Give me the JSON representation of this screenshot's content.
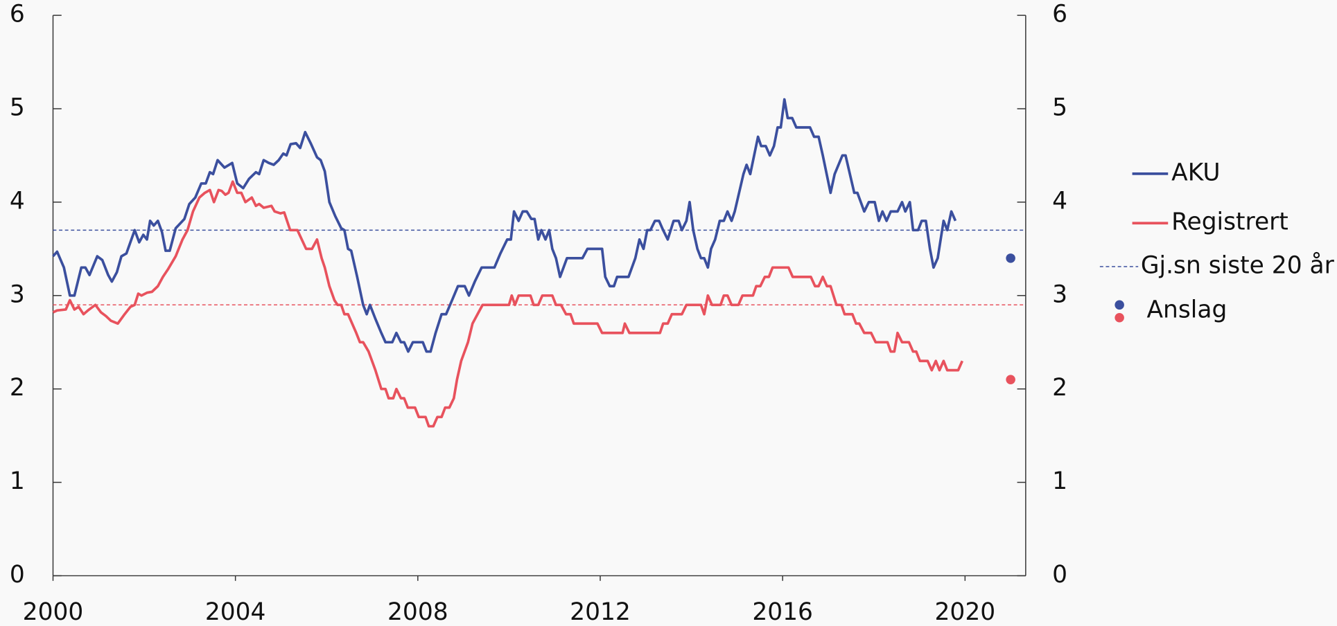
{
  "chart_data": {
    "type": "line",
    "xlim": [
      2000,
      2021.33
    ],
    "xticks": [
      2000,
      2004,
      2008,
      2012,
      2016,
      2020
    ],
    "ylim": [
      0,
      6
    ],
    "yticks": [
      0,
      1,
      2,
      3,
      4,
      5,
      6
    ],
    "y2lim": [
      0,
      6
    ],
    "y2ticks": [
      0,
      1,
      2,
      3,
      4,
      5,
      6
    ],
    "legend": "right",
    "series": [
      {
        "name": "AKU",
        "color": "#3b4f9e",
        "x": [
          2000,
          2000.09,
          2000.24,
          2000.37,
          2000.47,
          2000.62,
          2000.71,
          2000.8,
          2000.97,
          2001.08,
          2001.21,
          2001.29,
          2001.4,
          2001.5,
          2001.61,
          2001.79,
          2001.89,
          2001.98,
          2002.06,
          2002.13,
          2002.21,
          2002.3,
          2002.39,
          2002.47,
          2002.56,
          2002.69,
          2002.88,
          2002.99,
          2003.12,
          2003.25,
          2003.35,
          2003.44,
          2003.51,
          2003.61,
          2003.76,
          2003.93,
          2004.04,
          2004.17,
          2004.3,
          2004.45,
          2004.52,
          2004.62,
          2004.73,
          2004.84,
          2004.95,
          2005.05,
          2005.12,
          2005.21,
          2005.33,
          2005.42,
          2005.53,
          2005.66,
          2005.79,
          2005.87,
          2005.96,
          2006.06,
          2006.19,
          2006.32,
          2006.39,
          2006.47,
          2006.54,
          2006.67,
          2006.8,
          2006.88,
          2006.95,
          2007.07,
          2007.2,
          2007.29,
          2007.44,
          2007.53,
          2007.63,
          2007.7,
          2007.79,
          2007.89,
          2008.11,
          2008.19,
          2008.28,
          2008.39,
          2008.52,
          2008.62,
          2008.75,
          2008.88,
          2009.03,
          2009.12,
          2009.25,
          2009.4,
          2009.68,
          2009.81,
          2009.96,
          2010.04,
          2010.11,
          2010.21,
          2010.3,
          2010.39,
          2010.49,
          2010.56,
          2010.64,
          2010.71,
          2010.8,
          2010.88,
          2010.95,
          2011.03,
          2011.12,
          2011.27,
          2011.61,
          2011.72,
          2012.04,
          2012.11,
          2012.21,
          2012.3,
          2012.37,
          2012.62,
          2012.77,
          2012.86,
          2012.95,
          2013.03,
          2013.1,
          2013.2,
          2013.29,
          2013.38,
          2013.48,
          2013.61,
          2013.72,
          2013.79,
          2013.89,
          2013.96,
          2014.04,
          2014.13,
          2014.21,
          2014.28,
          2014.36,
          2014.43,
          2014.52,
          2014.62,
          2014.71,
          2014.79,
          2014.88,
          2014.95,
          2015.14,
          2015.21,
          2015.29,
          2015.46,
          2015.53,
          2015.63,
          2015.72,
          2015.81,
          2015.89,
          2015.96,
          2016.04,
          2016.11,
          2016.21,
          2016.3,
          2016.6,
          2016.69,
          2016.79,
          2016.88,
          2017.05,
          2017.14,
          2017.31,
          2017.38,
          2017.57,
          2017.64,
          2017.79,
          2017.89,
          2018.02,
          2018.11,
          2018.19,
          2018.28,
          2018.37,
          2018.52,
          2018.62,
          2018.69,
          2018.79,
          2018.86,
          2018.97,
          2019.05,
          2019.14,
          2019.23,
          2019.31,
          2019.4,
          2019.53,
          2019.61,
          2019.7,
          2019.79
        ],
        "values": [
          3.42,
          3.47,
          3.3,
          3.0,
          3.0,
          3.3,
          3.3,
          3.22,
          3.42,
          3.38,
          3.22,
          3.15,
          3.25,
          3.42,
          3.45,
          3.7,
          3.57,
          3.65,
          3.6,
          3.8,
          3.75,
          3.8,
          3.68,
          3.48,
          3.48,
          3.72,
          3.82,
          3.98,
          4.05,
          4.2,
          4.2,
          4.32,
          4.3,
          4.45,
          4.37,
          4.42,
          4.2,
          4.15,
          4.25,
          4.32,
          4.3,
          4.45,
          4.42,
          4.4,
          4.45,
          4.52,
          4.5,
          4.62,
          4.63,
          4.58,
          4.75,
          4.62,
          4.48,
          4.45,
          4.33,
          4.0,
          3.85,
          3.72,
          3.7,
          3.5,
          3.48,
          3.2,
          2.9,
          2.8,
          2.9,
          2.75,
          2.6,
          2.5,
          2.5,
          2.6,
          2.5,
          2.5,
          2.4,
          2.5,
          2.5,
          2.4,
          2.4,
          2.6,
          2.8,
          2.8,
          2.95,
          3.1,
          3.1,
          3.0,
          3.15,
          3.3,
          3.3,
          3.45,
          3.6,
          3.6,
          3.9,
          3.8,
          3.9,
          3.9,
          3.82,
          3.82,
          3.6,
          3.7,
          3.6,
          3.7,
          3.5,
          3.4,
          3.2,
          3.4,
          3.4,
          3.5,
          3.5,
          3.2,
          3.1,
          3.1,
          3.2,
          3.2,
          3.4,
          3.6,
          3.5,
          3.7,
          3.7,
          3.8,
          3.8,
          3.7,
          3.6,
          3.8,
          3.8,
          3.7,
          3.8,
          4.0,
          3.7,
          3.5,
          3.4,
          3.4,
          3.3,
          3.5,
          3.6,
          3.8,
          3.8,
          3.9,
          3.8,
          3.9,
          4.3,
          4.4,
          4.3,
          4.7,
          4.6,
          4.6,
          4.5,
          4.6,
          4.8,
          4.8,
          5.1,
          4.9,
          4.9,
          4.8,
          4.8,
          4.7,
          4.7,
          4.5,
          4.1,
          4.3,
          4.5,
          4.5,
          4.1,
          4.1,
          3.9,
          4.0,
          4.0,
          3.8,
          3.9,
          3.8,
          3.9,
          3.9,
          4.0,
          3.9,
          4.0,
          3.7,
          3.7,
          3.8,
          3.8,
          3.5,
          3.3,
          3.4,
          3.8,
          3.7,
          3.9,
          3.8
        ]
      },
      {
        "name": "Registrert",
        "color": "#e8525d",
        "x": [
          2000,
          2000.09,
          2000.28,
          2000.37,
          2000.47,
          2000.56,
          2000.67,
          2000.79,
          2000.93,
          2001.05,
          2001.16,
          2001.27,
          2001.42,
          2001.57,
          2001.7,
          2001.79,
          2001.87,
          2001.94,
          2002.06,
          2002.17,
          2002.3,
          2002.41,
          2002.52,
          2002.69,
          2002.84,
          2002.95,
          2003.07,
          2003.21,
          2003.33,
          2003.44,
          2003.53,
          2003.63,
          2003.7,
          2003.78,
          2003.85,
          2003.94,
          2004.04,
          2004.13,
          2004.22,
          2004.36,
          2004.45,
          2004.52,
          2004.62,
          2004.79,
          2004.86,
          2004.99,
          2005.07,
          2005.2,
          2005.36,
          2005.55,
          2005.68,
          2005.79,
          2005.89,
          2005.96,
          2006.06,
          2006.17,
          2006.24,
          2006.32,
          2006.39,
          2006.47,
          2006.56,
          2006.65,
          2006.73,
          2006.8,
          2006.92,
          2007.07,
          2007.2,
          2007.29,
          2007.36,
          2007.46,
          2007.53,
          2007.63,
          2007.7,
          2007.78,
          2007.94,
          2008.02,
          2008.17,
          2008.24,
          2008.34,
          2008.43,
          2008.52,
          2008.6,
          2008.69,
          2008.79,
          2008.86,
          2008.95,
          2009.1,
          2009.2,
          2009.31,
          2009.42,
          2010.0,
          2010.06,
          2010.13,
          2010.21,
          2010.47,
          2010.54,
          2010.64,
          2010.73,
          2010.95,
          2011.03,
          2011.14,
          2011.25,
          2011.35,
          2011.42,
          2011.94,
          2012.04,
          2012.49,
          2012.54,
          2012.64,
          2013.31,
          2013.38,
          2013.48,
          2013.57,
          2013.79,
          2013.89,
          2014.21,
          2014.28,
          2014.36,
          2014.45,
          2014.64,
          2014.71,
          2014.79,
          2014.88,
          2015.03,
          2015.12,
          2015.35,
          2015.42,
          2015.51,
          2015.61,
          2015.7,
          2015.78,
          2016.13,
          2016.22,
          2016.62,
          2016.71,
          2016.79,
          2016.88,
          2016.97,
          2017.05,
          2017.18,
          2017.29,
          2017.36,
          2017.53,
          2017.61,
          2017.68,
          2017.79,
          2017.94,
          2018.04,
          2018.3,
          2018.37,
          2018.45,
          2018.52,
          2018.62,
          2018.77,
          2018.86,
          2018.93,
          2019.01,
          2019.18,
          2019.27,
          2019.36,
          2019.44,
          2019.53,
          2019.61,
          2019.85,
          2019.94
        ],
        "values": [
          2.82,
          2.84,
          2.85,
          2.95,
          2.85,
          2.88,
          2.8,
          2.85,
          2.9,
          2.82,
          2.78,
          2.73,
          2.7,
          2.8,
          2.88,
          2.9,
          3.02,
          3.0,
          3.03,
          3.04,
          3.1,
          3.2,
          3.28,
          3.42,
          3.6,
          3.7,
          3.9,
          4.05,
          4.1,
          4.13,
          4.0,
          4.13,
          4.12,
          4.08,
          4.1,
          4.22,
          4.1,
          4.1,
          4.0,
          4.05,
          3.96,
          3.98,
          3.94,
          3.96,
          3.9,
          3.88,
          3.89,
          3.7,
          3.7,
          3.5,
          3.5,
          3.6,
          3.4,
          3.3,
          3.1,
          2.95,
          2.9,
          2.9,
          2.8,
          2.8,
          2.7,
          2.6,
          2.5,
          2.5,
          2.4,
          2.2,
          2.0,
          2.0,
          1.9,
          1.9,
          2.0,
          1.9,
          1.9,
          1.8,
          1.8,
          1.7,
          1.7,
          1.6,
          1.6,
          1.7,
          1.7,
          1.8,
          1.8,
          1.9,
          2.1,
          2.3,
          2.5,
          2.7,
          2.8,
          2.9,
          2.9,
          3.0,
          2.9,
          3.0,
          3.0,
          2.9,
          2.9,
          3.0,
          3.0,
          2.9,
          2.9,
          2.8,
          2.8,
          2.7,
          2.7,
          2.6,
          2.6,
          2.7,
          2.6,
          2.6,
          2.7,
          2.7,
          2.8,
          2.8,
          2.9,
          2.9,
          2.8,
          3.0,
          2.9,
          2.9,
          3.0,
          3.0,
          2.9,
          2.9,
          3.0,
          3.0,
          3.1,
          3.1,
          3.2,
          3.2,
          3.3,
          3.3,
          3.2,
          3.2,
          3.1,
          3.1,
          3.2,
          3.1,
          3.1,
          2.9,
          2.9,
          2.8,
          2.8,
          2.7,
          2.7,
          2.6,
          2.6,
          2.5,
          2.5,
          2.4,
          2.4,
          2.6,
          2.5,
          2.5,
          2.4,
          2.4,
          2.3,
          2.3,
          2.2,
          2.3,
          2.2,
          2.3,
          2.2,
          2.2,
          2.3
        ]
      }
    ],
    "reference_lines": {
      "name": "Gj.sn siste 20 år",
      "values": [
        3.7,
        2.9
      ]
    },
    "forecast": {
      "name": "Anslag",
      "x": 2021,
      "values": [
        3.4,
        2.1
      ]
    }
  }
}
